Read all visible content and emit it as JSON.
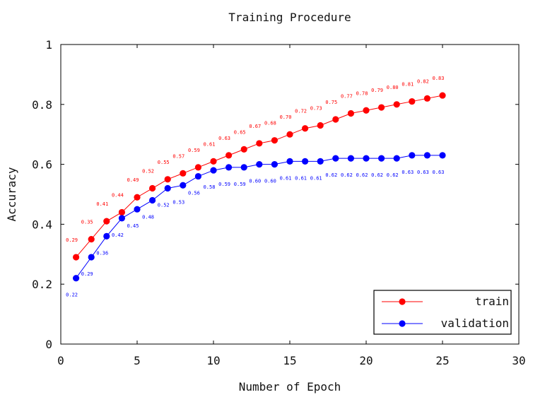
{
  "chart_data": {
    "type": "line",
    "title": "Training Procedure",
    "xlabel": "Number of Epoch",
    "ylabel": "Accuracy",
    "xlim": [
      0,
      30
    ],
    "ylim": [
      0,
      1
    ],
    "xticks": [
      0,
      5,
      10,
      15,
      20,
      25,
      30
    ],
    "yticks": [
      0,
      0.2,
      0.4,
      0.6,
      0.8,
      1
    ],
    "ytick_labels": [
      "0",
      "0.2",
      "0.4",
      "0.6",
      "0.8",
      "1"
    ],
    "grid": false,
    "legend_position": "bottom-right",
    "x": [
      1,
      2,
      3,
      4,
      5,
      6,
      7,
      8,
      9,
      10,
      11,
      12,
      13,
      14,
      15,
      16,
      17,
      18,
      19,
      20,
      21,
      22,
      23,
      24,
      25
    ],
    "series": [
      {
        "name": "train",
        "color": "#ff0000",
        "values": [
          0.29,
          0.35,
          0.41,
          0.44,
          0.49,
          0.52,
          0.55,
          0.57,
          0.59,
          0.61,
          0.63,
          0.65,
          0.67,
          0.68,
          0.7,
          0.72,
          0.73,
          0.75,
          0.77,
          0.78,
          0.79,
          0.8,
          0.81,
          0.82,
          0.83
        ],
        "labels": [
          "0.29",
          "0.35",
          "0.41",
          "0.44",
          "0.49",
          "0.52",
          "0.55",
          "0.57",
          "0.59",
          "0.61",
          "0.63",
          "0.65",
          "0.67",
          "0.68",
          "0.70",
          "0.72",
          "0.73",
          "0.75",
          "0.77",
          "0.78",
          "0.79",
          "0.80",
          "0.81",
          "0.82",
          "0.83"
        ]
      },
      {
        "name": "validation",
        "color": "#0000ff",
        "values": [
          0.22,
          0.29,
          0.36,
          0.42,
          0.45,
          0.48,
          0.52,
          0.53,
          0.56,
          0.58,
          0.59,
          0.59,
          0.6,
          0.6,
          0.61,
          0.61,
          0.61,
          0.62,
          0.62,
          0.62,
          0.62,
          0.62,
          0.63,
          0.63,
          0.63
        ],
        "labels": [
          "0.22",
          "0.29",
          "0.36",
          "0.42",
          "0.45",
          "0.48",
          "0.52",
          "0.53",
          "0.56",
          "0.58",
          "0.59",
          "0.59",
          "0.60",
          "0.60",
          "0.61",
          "0.61",
          "0.61",
          "0.62",
          "0.62",
          "0.62",
          "0.62",
          "0.62",
          "0.63",
          "0.63",
          "0.63"
        ]
      }
    ]
  }
}
